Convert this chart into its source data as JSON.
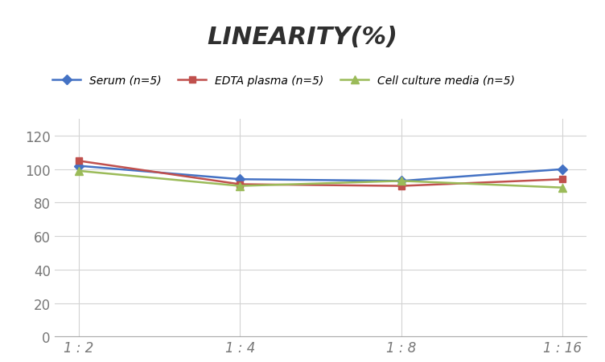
{
  "title": "LINEARITY(%)",
  "x_labels": [
    "1 : 2",
    "1 : 4",
    "1 : 8",
    "1 : 16"
  ],
  "x_positions": [
    0,
    1,
    2,
    3
  ],
  "series": [
    {
      "label": "Serum (n=5)",
      "values": [
        102,
        94,
        93,
        100
      ],
      "color": "#4472C4",
      "marker": "D",
      "marker_size": 6,
      "linewidth": 1.8
    },
    {
      "label": "EDTA plasma (n=5)",
      "values": [
        105,
        91,
        90,
        94
      ],
      "color": "#C0504D",
      "marker": "s",
      "marker_size": 6,
      "linewidth": 1.8
    },
    {
      "label": "Cell culture media (n=5)",
      "values": [
        99,
        90,
        93,
        89
      ],
      "color": "#9BBB59",
      "marker": "^",
      "marker_size": 7,
      "linewidth": 1.8
    }
  ],
  "ylim": [
    0,
    130
  ],
  "yticks": [
    0,
    20,
    40,
    60,
    80,
    100,
    120
  ],
  "background_color": "#ffffff",
  "grid_color": "#d3d3d3",
  "title_fontsize": 22,
  "title_fontstyle": "italic",
  "title_fontweight": "bold",
  "legend_fontsize": 10,
  "tick_fontsize": 12,
  "tick_color": "#777777"
}
